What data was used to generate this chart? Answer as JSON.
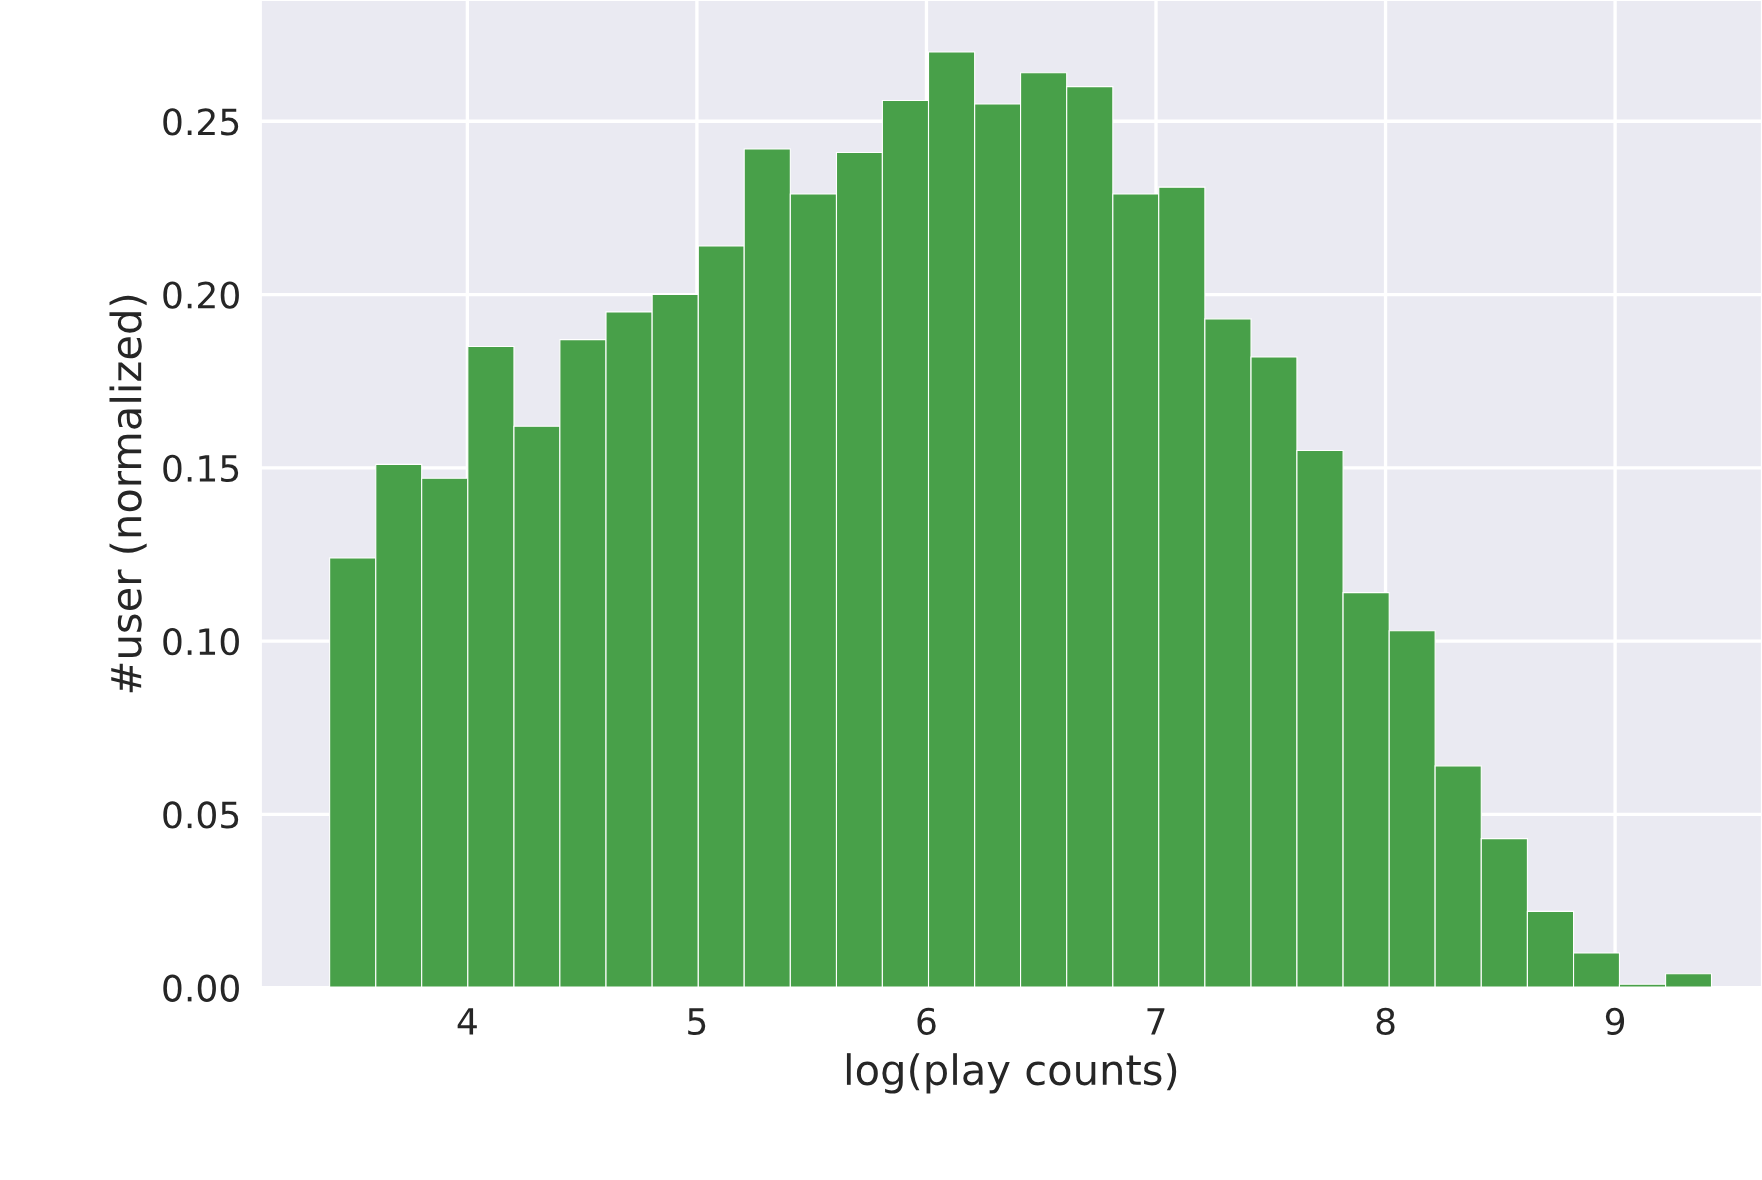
{
  "chart_data": {
    "type": "histogram",
    "xlabel": "log(play counts)",
    "ylabel": "#user (normalized)",
    "bins": [
      3.4,
      3.601,
      3.801,
      4.002,
      4.203,
      4.403,
      4.604,
      4.805,
      5.006,
      5.206,
      5.407,
      5.608,
      5.808,
      6.009,
      6.21,
      6.41,
      6.611,
      6.812,
      7.012,
      7.213,
      7.414,
      7.614,
      7.815,
      8.016,
      8.216,
      8.417,
      8.618,
      8.819,
      9.019,
      9.22,
      9.42
    ],
    "values": [
      0.124,
      0.151,
      0.147,
      0.185,
      0.162,
      0.187,
      0.195,
      0.2,
      0.214,
      0.242,
      0.229,
      0.241,
      0.256,
      0.27,
      0.255,
      0.264,
      0.26,
      0.229,
      0.231,
      0.193,
      0.182,
      0.155,
      0.114,
      0.103,
      0.064,
      0.043,
      0.022,
      0.01,
      0.001,
      0.004
    ],
    "color": "#48a049",
    "xlim": [
      3.1,
      9.64
    ],
    "ylim": [
      0,
      0.285
    ],
    "xticks": [
      4,
      5,
      6,
      7,
      8,
      9
    ],
    "yticks": [
      {
        "value": 0,
        "label": "0.00"
      },
      {
        "value": 0.05,
        "label": "0.05"
      },
      {
        "value": 0.1,
        "label": "0.10"
      },
      {
        "value": 0.15,
        "label": "0.15"
      },
      {
        "value": 0.2,
        "label": "0.20"
      },
      {
        "value": 0.25,
        "label": "0.25"
      }
    ],
    "grid": true
  }
}
